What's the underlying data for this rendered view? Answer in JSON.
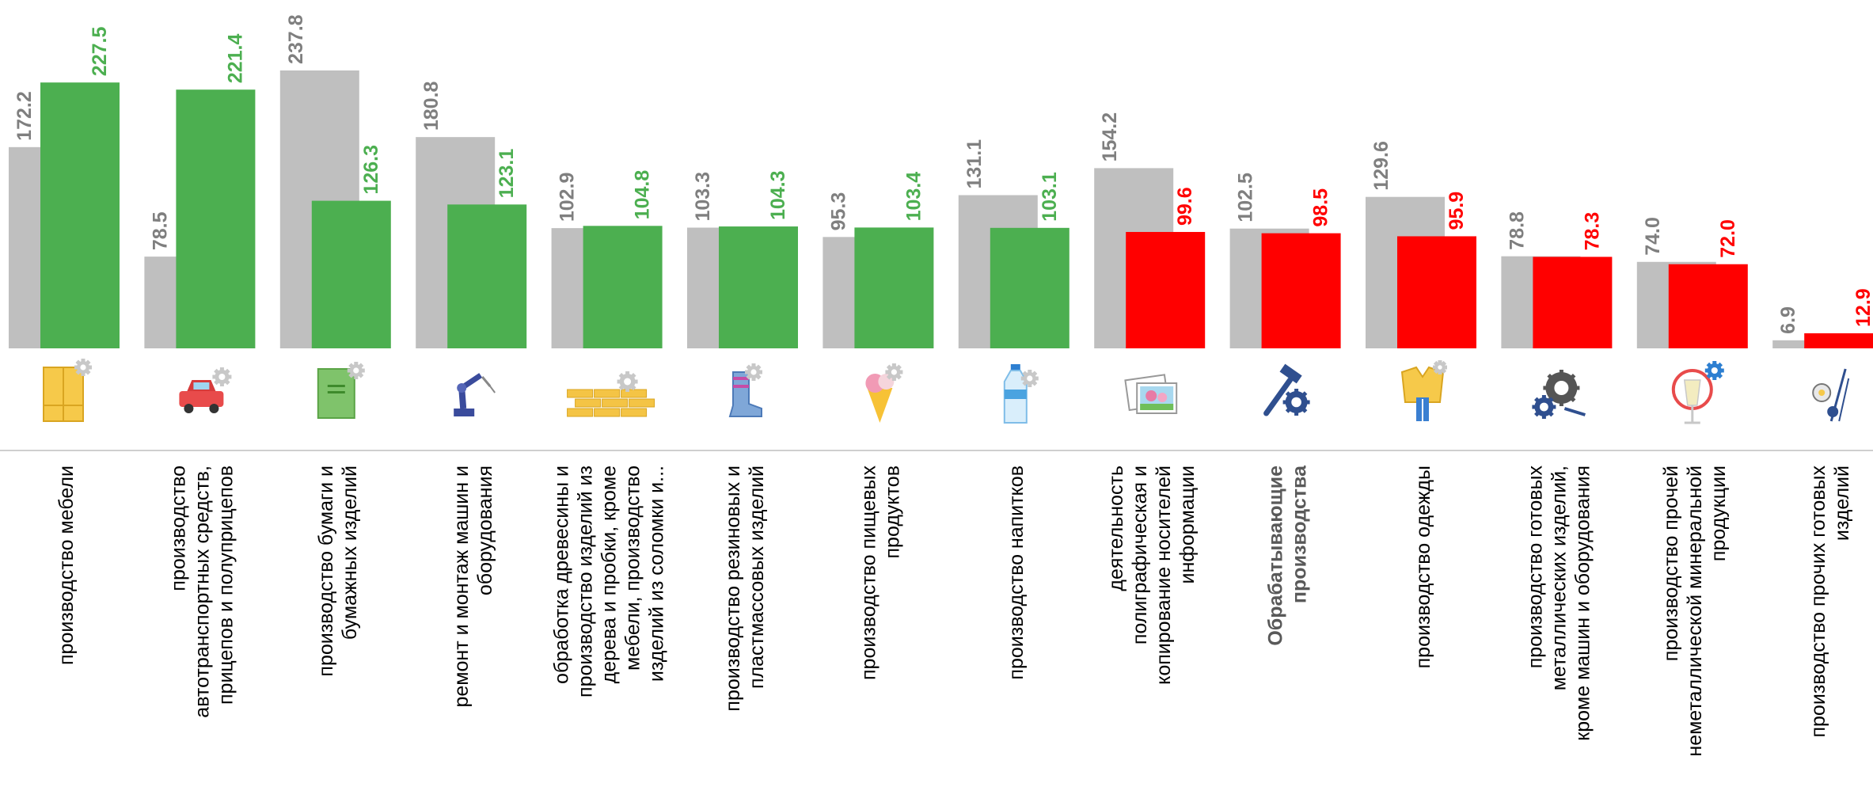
{
  "colors": {
    "prev_bar": "#bfbfbf",
    "prev_label": "#7f7f7f",
    "growth": "#4caf50",
    "decline": "#ff0000",
    "axis": "#bfbfbf"
  },
  "chart_data": {
    "type": "bar",
    "title": "",
    "xlabel": "",
    "ylabel": "",
    "ylim": [
      0,
      240
    ],
    "grid": false,
    "legend": "none",
    "categories": [
      "производство мебели",
      "производство автотранспортных средств, прицепов и  полуприцепов",
      "производство бумаги и бумажных изделий",
      "ремонт и монтаж машин и оборудования",
      "обработка древесины и производство изделий из дерева и пробки, кроме мебели, производство изделий из соломки  и...",
      "производство резиновых и пластмассовых изделий",
      "производство пищевых продуктов",
      "производство напитков",
      "деятельность полиграфическая и копирование носителей информации",
      "Обрабатывающие производства",
      "производство одежды",
      "производство готовых металлических изделий, кроме  машин и оборудования",
      "производство прочей неметаллической минеральной продукции",
      "производство прочих готовых изделий"
    ],
    "category_lines": [
      [
        "производство мебели"
      ],
      [
        "производство",
        "автотранспортных средств,",
        "прицепов и  полуприцепов"
      ],
      [
        "производство бумаги и",
        "бумажных изделий"
      ],
      [
        "ремонт и монтаж машин и",
        "оборудования"
      ],
      [
        "обработка древесины и",
        "производство изделий из",
        "дерева и пробки, кроме",
        "мебели, производство",
        "изделий из соломки  и..."
      ],
      [
        "производство резиновых и",
        "пластмассовых изделий"
      ],
      [
        "производство пищевых",
        "продуктов"
      ],
      [
        "производство напитков"
      ],
      [
        "деятельность",
        "полиграфическая и",
        "копирование носителей",
        "информации"
      ],
      [
        "Обрабатывающие",
        "производства"
      ],
      [
        "производство одежды"
      ],
      [
        "производство готовых",
        "металлических изделий,",
        "кроме  машин и оборудования"
      ],
      [
        "производство прочей",
        "неметаллической минеральной",
        "продукции"
      ],
      [
        "производство прочих готовых",
        "изделий"
      ]
    ],
    "highlight_category_index": 9,
    "series": [
      {
        "values": [
          172.2,
          78.5,
          237.8,
          180.8,
          102.9,
          103.3,
          95.3,
          131.1,
          154.2,
          102.5,
          129.6,
          78.8,
          74.0,
          6.9
        ],
        "labels": [
          "172.2",
          "78.5",
          "237.8",
          "180.8",
          "102.9",
          "103.3",
          "95.3",
          "131.1",
          "154.2",
          "102.5",
          "129.6",
          "78.8",
          "74.0",
          "6.9"
        ]
      },
      {
        "values": [
          227.5,
          221.4,
          126.3,
          123.1,
          104.8,
          104.3,
          103.4,
          103.1,
          99.6,
          98.5,
          95.9,
          78.3,
          72.0,
          12.9
        ],
        "labels": [
          "227.5",
          "221.4",
          "126.3",
          "123.1",
          "104.8",
          "104.3",
          "103.4",
          "103.1",
          "99.6",
          "98.5",
          "95.9",
          "78.3",
          "72.0",
          "12.9"
        ]
      }
    ],
    "icons": [
      "wardrobe-icon",
      "car-icon",
      "book-icon",
      "robot-arm-icon",
      "wood-planks-icon",
      "rubber-boot-icon",
      "ice-cream-icon",
      "water-bottle-icon",
      "printed-photos-icon",
      "hammer-gear-icon",
      "clothing-icon",
      "metal-gears-icon",
      "glass-mirror-icon",
      "sports-items-icon"
    ]
  }
}
